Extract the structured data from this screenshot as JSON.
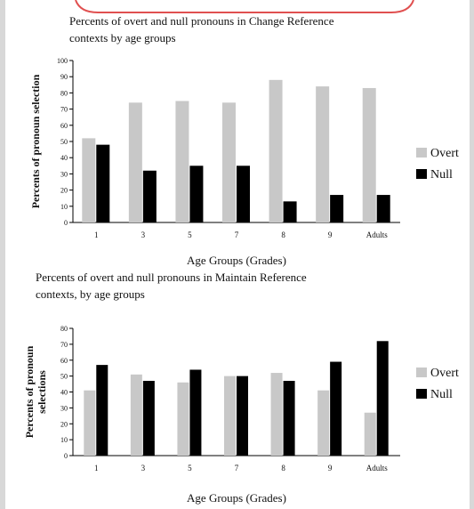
{
  "chart_data": [
    {
      "type": "bar",
      "title": "Percents of overt and null pronouns in Change Reference contexts by age groups",
      "title_lines": [
        "Percents of overt and null pronouns in Change Reference",
        "contexts by age groups"
      ],
      "xlabel": "Age Groups (Grades)",
      "ylabel": "Percents of pronoun selection",
      "ylim": [
        0,
        100
      ],
      "ytick_labels": [
        "0",
        "10",
        "20",
        "30",
        "40",
        "50",
        "60",
        "70",
        "80",
        "90",
        "100"
      ],
      "categories": [
        "1",
        "3",
        "5",
        "7",
        "8",
        "9",
        "Adults"
      ],
      "series": [
        {
          "name": "Overt",
          "color": "#c8c8c8",
          "values": [
            52,
            74,
            75,
            74,
            88,
            84,
            83
          ]
        },
        {
          "name": "Null",
          "color": "#000000",
          "values": [
            48,
            32,
            35,
            35,
            13,
            17,
            17
          ]
        }
      ],
      "legend": "right",
      "grid": false
    },
    {
      "type": "bar",
      "title": "Percents of overt and null pronouns in Maintain Reference contexts, by age groups",
      "title_lines": [
        "Percents of overt and null pronouns in Maintain Reference",
        "contexts, by age groups"
      ],
      "xlabel": "Age Groups (Grades)",
      "ylabel": "Percents of pronoun selections",
      "ylim": [
        0,
        80
      ],
      "ytick_labels": [
        "0",
        "10",
        "20",
        "30",
        "40",
        "50",
        "60",
        "70",
        "80"
      ],
      "categories": [
        "1",
        "3",
        "5",
        "7",
        "8",
        "9",
        "Adults"
      ],
      "series": [
        {
          "name": "Overt",
          "color": "#c8c8c8",
          "values": [
            41,
            51,
            46,
            50,
            52,
            41,
            27
          ]
        },
        {
          "name": "Null",
          "color": "#000000",
          "values": [
            57,
            47,
            54,
            50,
            47,
            59,
            72
          ]
        }
      ],
      "legend": "right",
      "grid": false
    }
  ]
}
